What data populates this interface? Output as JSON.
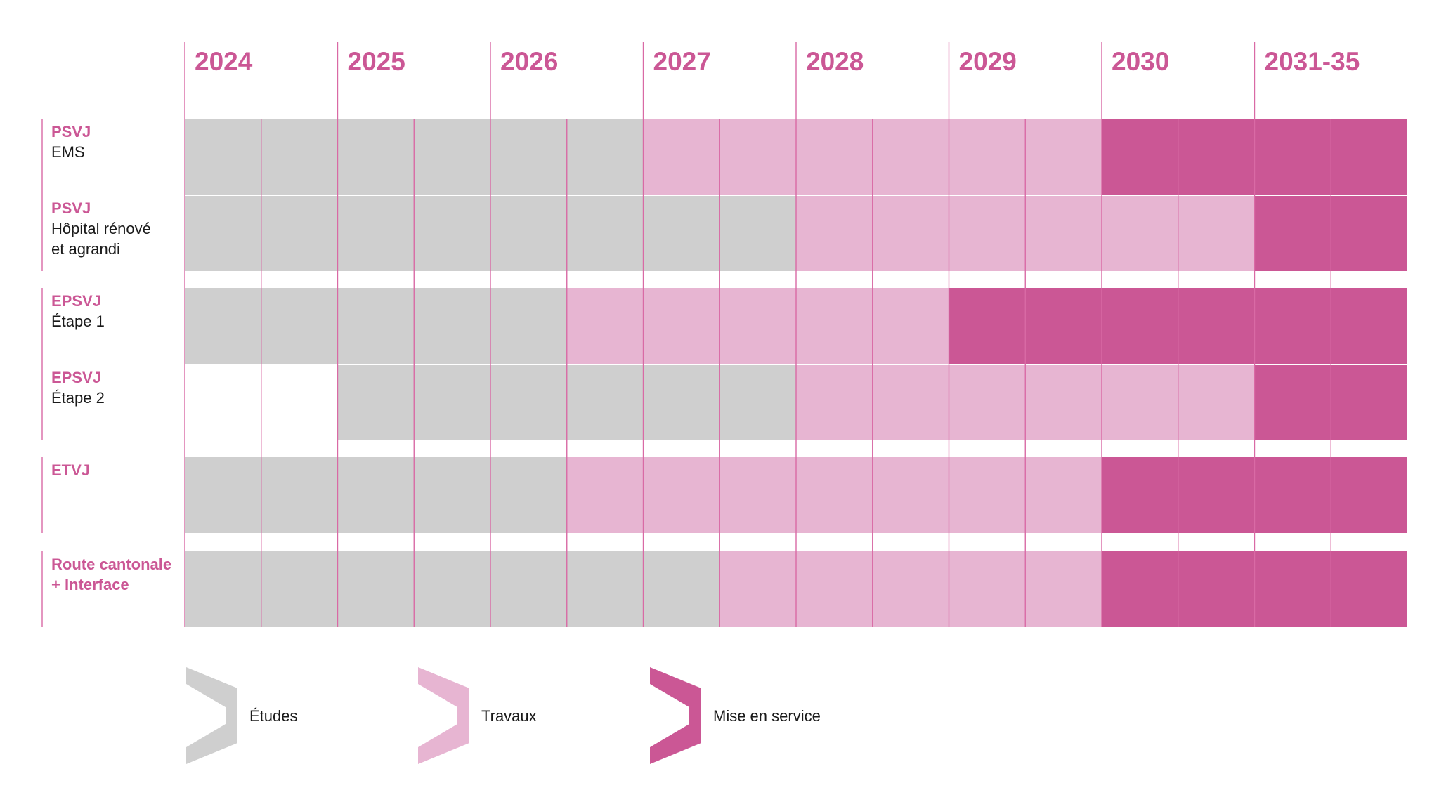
{
  "chart_data": {
    "type": "gantt",
    "title": "",
    "columns": [
      "2024",
      "2025",
      "2026",
      "2027",
      "2028",
      "2029",
      "2030",
      "2031-35"
    ],
    "subdivisions_per_column": 2,
    "phases": [
      {
        "key": "etudes",
        "label": "Études",
        "color": "#cfcfcf"
      },
      {
        "key": "travaux",
        "label": "Travaux",
        "color": "#e7b5d2"
      },
      {
        "key": "service",
        "label": "Mise en service",
        "color": "#cb5795"
      }
    ],
    "rows": [
      {
        "code": "PSVJ",
        "subtitle": [
          "EMS"
        ],
        "segments": [
          {
            "phase": "etudes",
            "start": 0,
            "end": 6
          },
          {
            "phase": "travaux",
            "start": 6,
            "end": 12
          },
          {
            "phase": "service",
            "start": 12,
            "end": 16
          }
        ]
      },
      {
        "code": "PSVJ",
        "subtitle": [
          "Hôpital rénové",
          "et agrandi"
        ],
        "segments": [
          {
            "phase": "etudes",
            "start": 0,
            "end": 8
          },
          {
            "phase": "travaux",
            "start": 8,
            "end": 14
          },
          {
            "phase": "service",
            "start": 14,
            "end": 16
          }
        ]
      },
      {
        "code": "EPSVJ",
        "subtitle": [
          "Étape 1"
        ],
        "segments": [
          {
            "phase": "etudes",
            "start": 0,
            "end": 5
          },
          {
            "phase": "travaux",
            "start": 5,
            "end": 10
          },
          {
            "phase": "service",
            "start": 10,
            "end": 16
          }
        ]
      },
      {
        "code": "EPSVJ",
        "subtitle": [
          "Étape 2"
        ],
        "segments": [
          {
            "phase": "etudes",
            "start": 2,
            "end": 8
          },
          {
            "phase": "travaux",
            "start": 8,
            "end": 14
          },
          {
            "phase": "service",
            "start": 14,
            "end": 16
          }
        ]
      },
      {
        "code": "ETVJ",
        "subtitle": [],
        "segments": [
          {
            "phase": "etudes",
            "start": 0,
            "end": 5
          },
          {
            "phase": "travaux",
            "start": 5,
            "end": 12
          },
          {
            "phase": "service",
            "start": 12,
            "end": 16
          }
        ]
      },
      {
        "code": "Route cantonale",
        "subtitle": [],
        "code_line2": "+ Interface",
        "segments": [
          {
            "phase": "etudes",
            "start": 0,
            "end": 7
          },
          {
            "phase": "travaux",
            "start": 7,
            "end": 12
          },
          {
            "phase": "service",
            "start": 12,
            "end": 16
          }
        ]
      }
    ],
    "groups": [
      [
        0,
        1
      ],
      [
        2,
        3
      ],
      [
        4
      ],
      [
        5
      ]
    ]
  },
  "colors": {
    "accent": "#cb5795",
    "divider": "#d96aa5",
    "text": "#1a1a1a"
  }
}
